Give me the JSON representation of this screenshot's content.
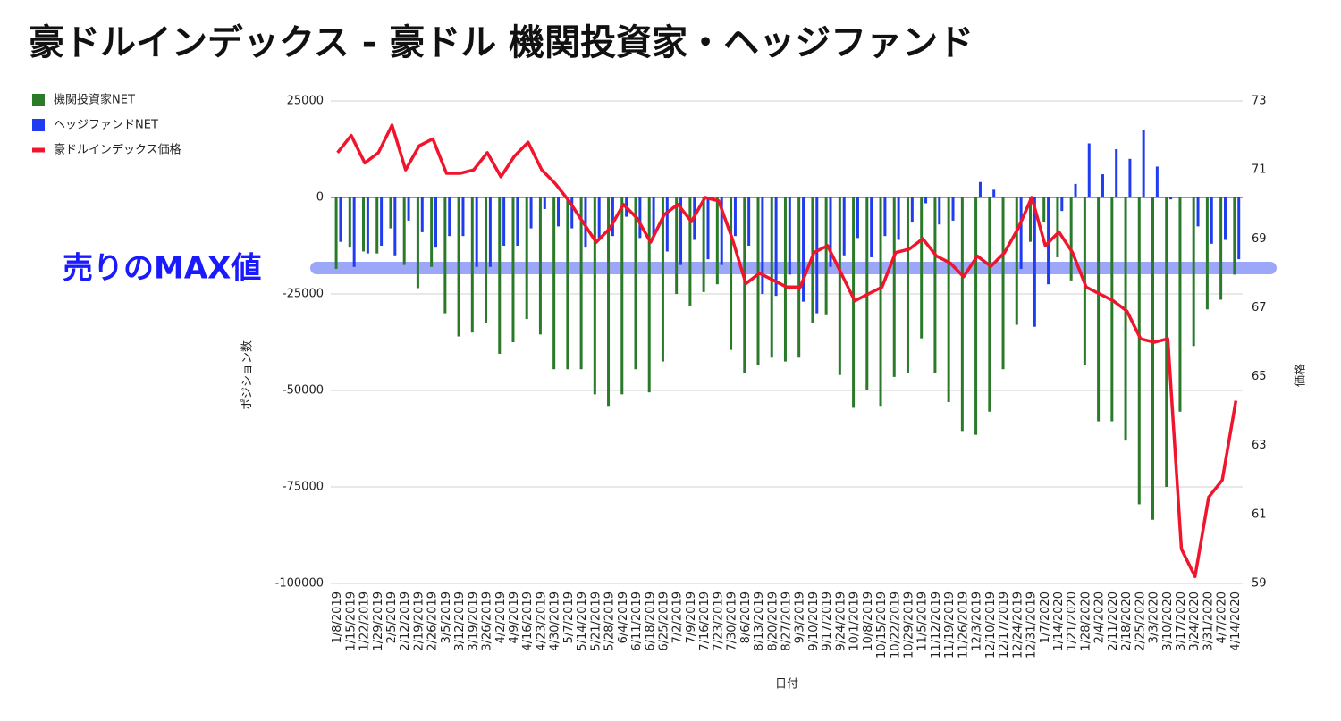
{
  "chart_data": {
    "type": "bar_line",
    "title": "豪ドルインデックス - 豪ドル 機関投資家・ヘッジファンド",
    "annotation": "売りのMAX値",
    "x_label": "日付",
    "y_label": "ポジション数",
    "y2_label": "価格",
    "categories": [
      "1/8/2019",
      "1/15/2019",
      "1/22/2019",
      "1/29/2019",
      "2/5/2019",
      "2/12/2019",
      "2/19/2019",
      "2/26/2019",
      "3/5/2019",
      "3/12/2019",
      "3/19/2019",
      "3/26/2019",
      "4/2/2019",
      "4/9/2019",
      "4/16/2019",
      "4/23/2019",
      "4/30/2019",
      "5/7/2019",
      "5/14/2019",
      "5/21/2019",
      "5/28/2019",
      "6/4/2019",
      "6/11/2019",
      "6/18/2019",
      "6/25/2019",
      "7/2/2019",
      "7/9/2019",
      "7/16/2019",
      "7/23/2019",
      "7/30/2019",
      "8/6/2019",
      "8/13/2019",
      "8/20/2019",
      "8/27/2019",
      "9/3/2019",
      "9/10/2019",
      "9/17/2019",
      "9/24/2019",
      "10/1/2019",
      "10/8/2019",
      "10/15/2019",
      "10/22/2019",
      "10/29/2019",
      "11/5/2019",
      "11/12/2019",
      "11/19/2019",
      "11/26/2019",
      "12/3/2019",
      "12/10/2019",
      "12/17/2019",
      "12/24/2019",
      "12/31/2019",
      "1/7/2020",
      "1/14/2020",
      "1/21/2020",
      "1/28/2020",
      "2/4/2020",
      "2/11/2020",
      "2/18/2020",
      "2/25/2020",
      "3/3/2020",
      "3/10/2020",
      "3/17/2020",
      "3/24/2020",
      "3/31/2020",
      "4/7/2020",
      "4/14/2020"
    ],
    "series": [
      {
        "name": "機関投資家NET",
        "color": "#2a7a2a",
        "kind": "bar",
        "values": [
          -18500,
          -13000,
          -14000,
          -14500,
          -8000,
          -17500,
          -23500,
          -18000,
          -30000,
          -36000,
          -35000,
          -32500,
          -40500,
          -37500,
          -31500,
          -35500,
          -44500,
          -44500,
          -44500,
          -51000,
          -54000,
          -51000,
          -44500,
          -50500,
          -42500,
          -25000,
          -28000,
          -24500,
          -22500,
          -39500,
          -45500,
          -43500,
          -41500,
          -42500,
          -41500,
          -32500,
          -30500,
          -46000,
          -54500,
          -50000,
          -54000,
          -46500,
          -45500,
          -36500,
          -45500,
          -53000,
          -60500,
          -61500,
          -55500,
          -44500,
          -33000,
          -11500,
          -6500,
          -15500,
          -21500,
          -43500,
          -58000,
          -58000,
          -63000,
          -79500,
          -83500,
          -75000,
          -55500,
          -38500,
          -29000,
          -26500,
          -20000
        ]
      },
      {
        "name": "ヘッジファンドNET",
        "color": "#1f3cf0",
        "kind": "bar",
        "values": [
          -11500,
          -18000,
          -14500,
          -12500,
          -15000,
          -6000,
          -9000,
          -13000,
          -10000,
          -10000,
          -18000,
          -18000,
          -12500,
          -12500,
          -8000,
          -3000,
          -7500,
          -8000,
          -13000,
          -11000,
          -10000,
          -5000,
          -10500,
          -10000,
          -14000,
          -17500,
          -11000,
          -16000,
          -17500,
          -10000,
          -12500,
          -25000,
          -25500,
          -20000,
          -27000,
          -30000,
          -18000,
          -15000,
          -10500,
          -15500,
          -10000,
          -11000,
          -6500,
          -1500,
          -7000,
          -6000,
          0,
          4000,
          2000,
          0,
          -18500,
          -33500,
          -22500,
          -3500,
          3500,
          14000,
          6000,
          12500,
          10000,
          17500,
          8000,
          -500,
          0,
          -7500,
          -12000,
          -11000,
          -16000
        ]
      },
      {
        "name": "豪ドルインデックス価格",
        "color": "#f0142d",
        "kind": "line",
        "axis": "y2",
        "values": [
          71.5,
          72.0,
          71.2,
          71.5,
          72.3,
          71.0,
          71.7,
          71.9,
          70.9,
          70.9,
          71.0,
          71.5,
          70.8,
          71.4,
          71.8,
          71.0,
          70.6,
          70.1,
          69.5,
          68.9,
          69.3,
          70.0,
          69.6,
          68.9,
          69.7,
          70.0,
          69.5,
          70.2,
          70.1,
          69.0,
          67.7,
          68.0,
          67.8,
          67.6,
          67.6,
          68.6,
          68.8,
          68.0,
          67.2,
          67.4,
          67.6,
          68.6,
          68.7,
          69.0,
          68.5,
          68.3,
          67.9,
          68.5,
          68.2,
          68.6,
          69.3,
          70.2,
          68.8,
          69.2,
          68.6,
          67.6,
          67.4,
          67.2,
          66.9,
          66.1,
          66.0,
          66.1,
          60.0,
          59.2,
          61.5,
          62.0,
          64.3
        ]
      }
    ],
    "ylim": [
      -100000,
      25000
    ],
    "yticks": [
      -100000,
      -75000,
      -50000,
      -25000,
      0,
      25000
    ],
    "y2lim": [
      59,
      73
    ],
    "y2ticks": [
      59,
      61,
      63,
      65,
      67,
      69,
      71,
      73
    ],
    "grid": true
  }
}
